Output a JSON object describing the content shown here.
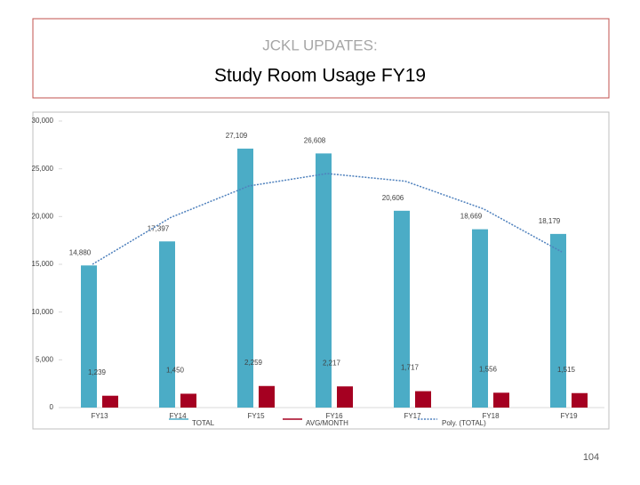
{
  "header": {
    "kicker": "JCKL UPDATES:",
    "title": "Study Room Usage FY19"
  },
  "chart_data": {
    "type": "bar",
    "categories": [
      "FY13",
      "FY14",
      "FY15",
      "FY16",
      "FY17",
      "FY18",
      "FY19"
    ],
    "series": [
      {
        "name": "TOTAL",
        "color": "#4bacc6",
        "values": [
          14880,
          17397,
          27109,
          26608,
          20606,
          18669,
          18179
        ],
        "value_labels": [
          "14,880",
          "17,397",
          "27,109",
          "26,608",
          "20,606",
          "18,669",
          "18,179"
        ]
      },
      {
        "name": "AVG/MONTH",
        "color": "#a50021",
        "values": [
          1239,
          1450,
          2259,
          2217,
          1717,
          1556,
          1515
        ],
        "value_labels": [
          "1,239",
          "1,450",
          "2,259",
          "2,217",
          "1,717",
          "1,556",
          "1,515"
        ]
      },
      {
        "name": "Poly. (TOTAL)",
        "type": "line",
        "color": "#4f81bd",
        "values": [
          15000,
          19900,
          23200,
          24500,
          23700,
          20800,
          16300
        ]
      }
    ],
    "ylim": [
      0,
      30000
    ],
    "yticks": [
      0,
      {
        "value": 5000,
        "label": "5,000"
      },
      {
        "value": 10000,
        "label": "10,000"
      },
      {
        "value": 15000,
        "label": "15,000"
      },
      {
        "value": 20000,
        "label": "20,000"
      },
      {
        "value": 25000,
        "label": "25,000"
      },
      {
        "value": 30000,
        "label": "30,000"
      }
    ],
    "grid": false,
    "legend": "bottom"
  },
  "footer": {
    "page": "104"
  }
}
